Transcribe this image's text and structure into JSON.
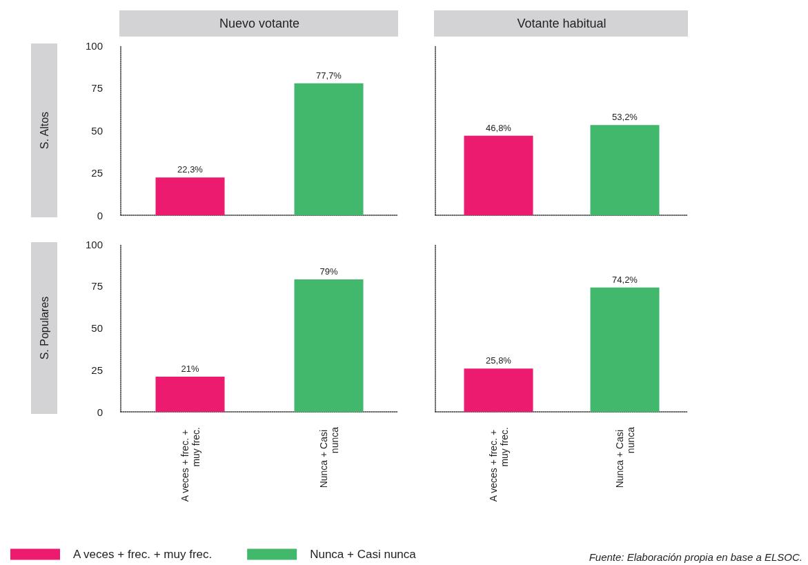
{
  "chart_data": [
    {
      "type": "bar",
      "title": "Nuevo votante",
      "ylabel": "S. Altos",
      "categories": [
        "A veces + frec. + muy frec.",
        "Nunca + Casi nunca"
      ],
      "ylim": [
        0,
        100
      ],
      "yticks": [
        0,
        25,
        50,
        75,
        100
      ],
      "tick_labels": "y",
      "series": [
        {
          "color": "#ed1b6f",
          "values": [
            22.3,
            null
          ],
          "value_labels": [
            "22,3%",
            null
          ]
        },
        {
          "color": "#41b86b",
          "values": [
            null,
            77.7
          ],
          "value_labels": [
            null,
            "77,7%"
          ]
        }
      ]
    },
    {
      "type": "bar",
      "title": "Votante habitual",
      "categories": [
        "A veces + frec. + muy frec.",
        "Nunca + Casi nunca"
      ],
      "ylim": [
        0,
        100
      ],
      "yticks": [
        0,
        25,
        50,
        75,
        100
      ],
      "tick_labels": false,
      "series": [
        {
          "color": "#ed1b6f",
          "values": [
            46.8,
            null
          ],
          "value_labels": [
            "46,8%",
            null
          ]
        },
        {
          "color": "#41b86b",
          "values": [
            null,
            53.2
          ],
          "value_labels": [
            null,
            "53,2%"
          ]
        }
      ]
    },
    {
      "type": "bar",
      "ylabel": "S. Populares",
      "categories": [
        "A veces + frec. + muy frec.",
        "Nunca + Casi nunca"
      ],
      "ylim": [
        0,
        100
      ],
      "yticks": [
        0,
        25,
        50,
        75,
        100
      ],
      "legend": "bottom",
      "series": [
        {
          "name": "A veces + frec. + muy frec.",
          "color": "#ed1b6f",
          "values": [
            21,
            null
          ],
          "value_labels": [
            "21%",
            null
          ]
        },
        {
          "name": "Nunca + Casi nunca",
          "color": "#41b86b",
          "values": [
            null,
            79
          ],
          "value_labels": [
            null,
            "79%"
          ]
        }
      ]
    },
    {
      "type": "bar",
      "categories": [
        "A veces + frec. + muy frec.",
        "Nunca + Casi nunca"
      ],
      "ylim": [
        0,
        100
      ],
      "yticks": [
        0,
        25,
        50,
        75,
        100
      ],
      "tick_labels": "x",
      "annotations": [
        "Fuente: Elaboración propia en base a ELSOC."
      ],
      "series": [
        {
          "color": "#ed1b6f",
          "values": [
            25.8,
            null
          ],
          "value_labels": [
            "25,8%",
            null
          ]
        },
        {
          "color": "#41b86b",
          "values": [
            null,
            74.2
          ],
          "value_labels": [
            null,
            "74,2%"
          ]
        }
      ]
    }
  ]
}
